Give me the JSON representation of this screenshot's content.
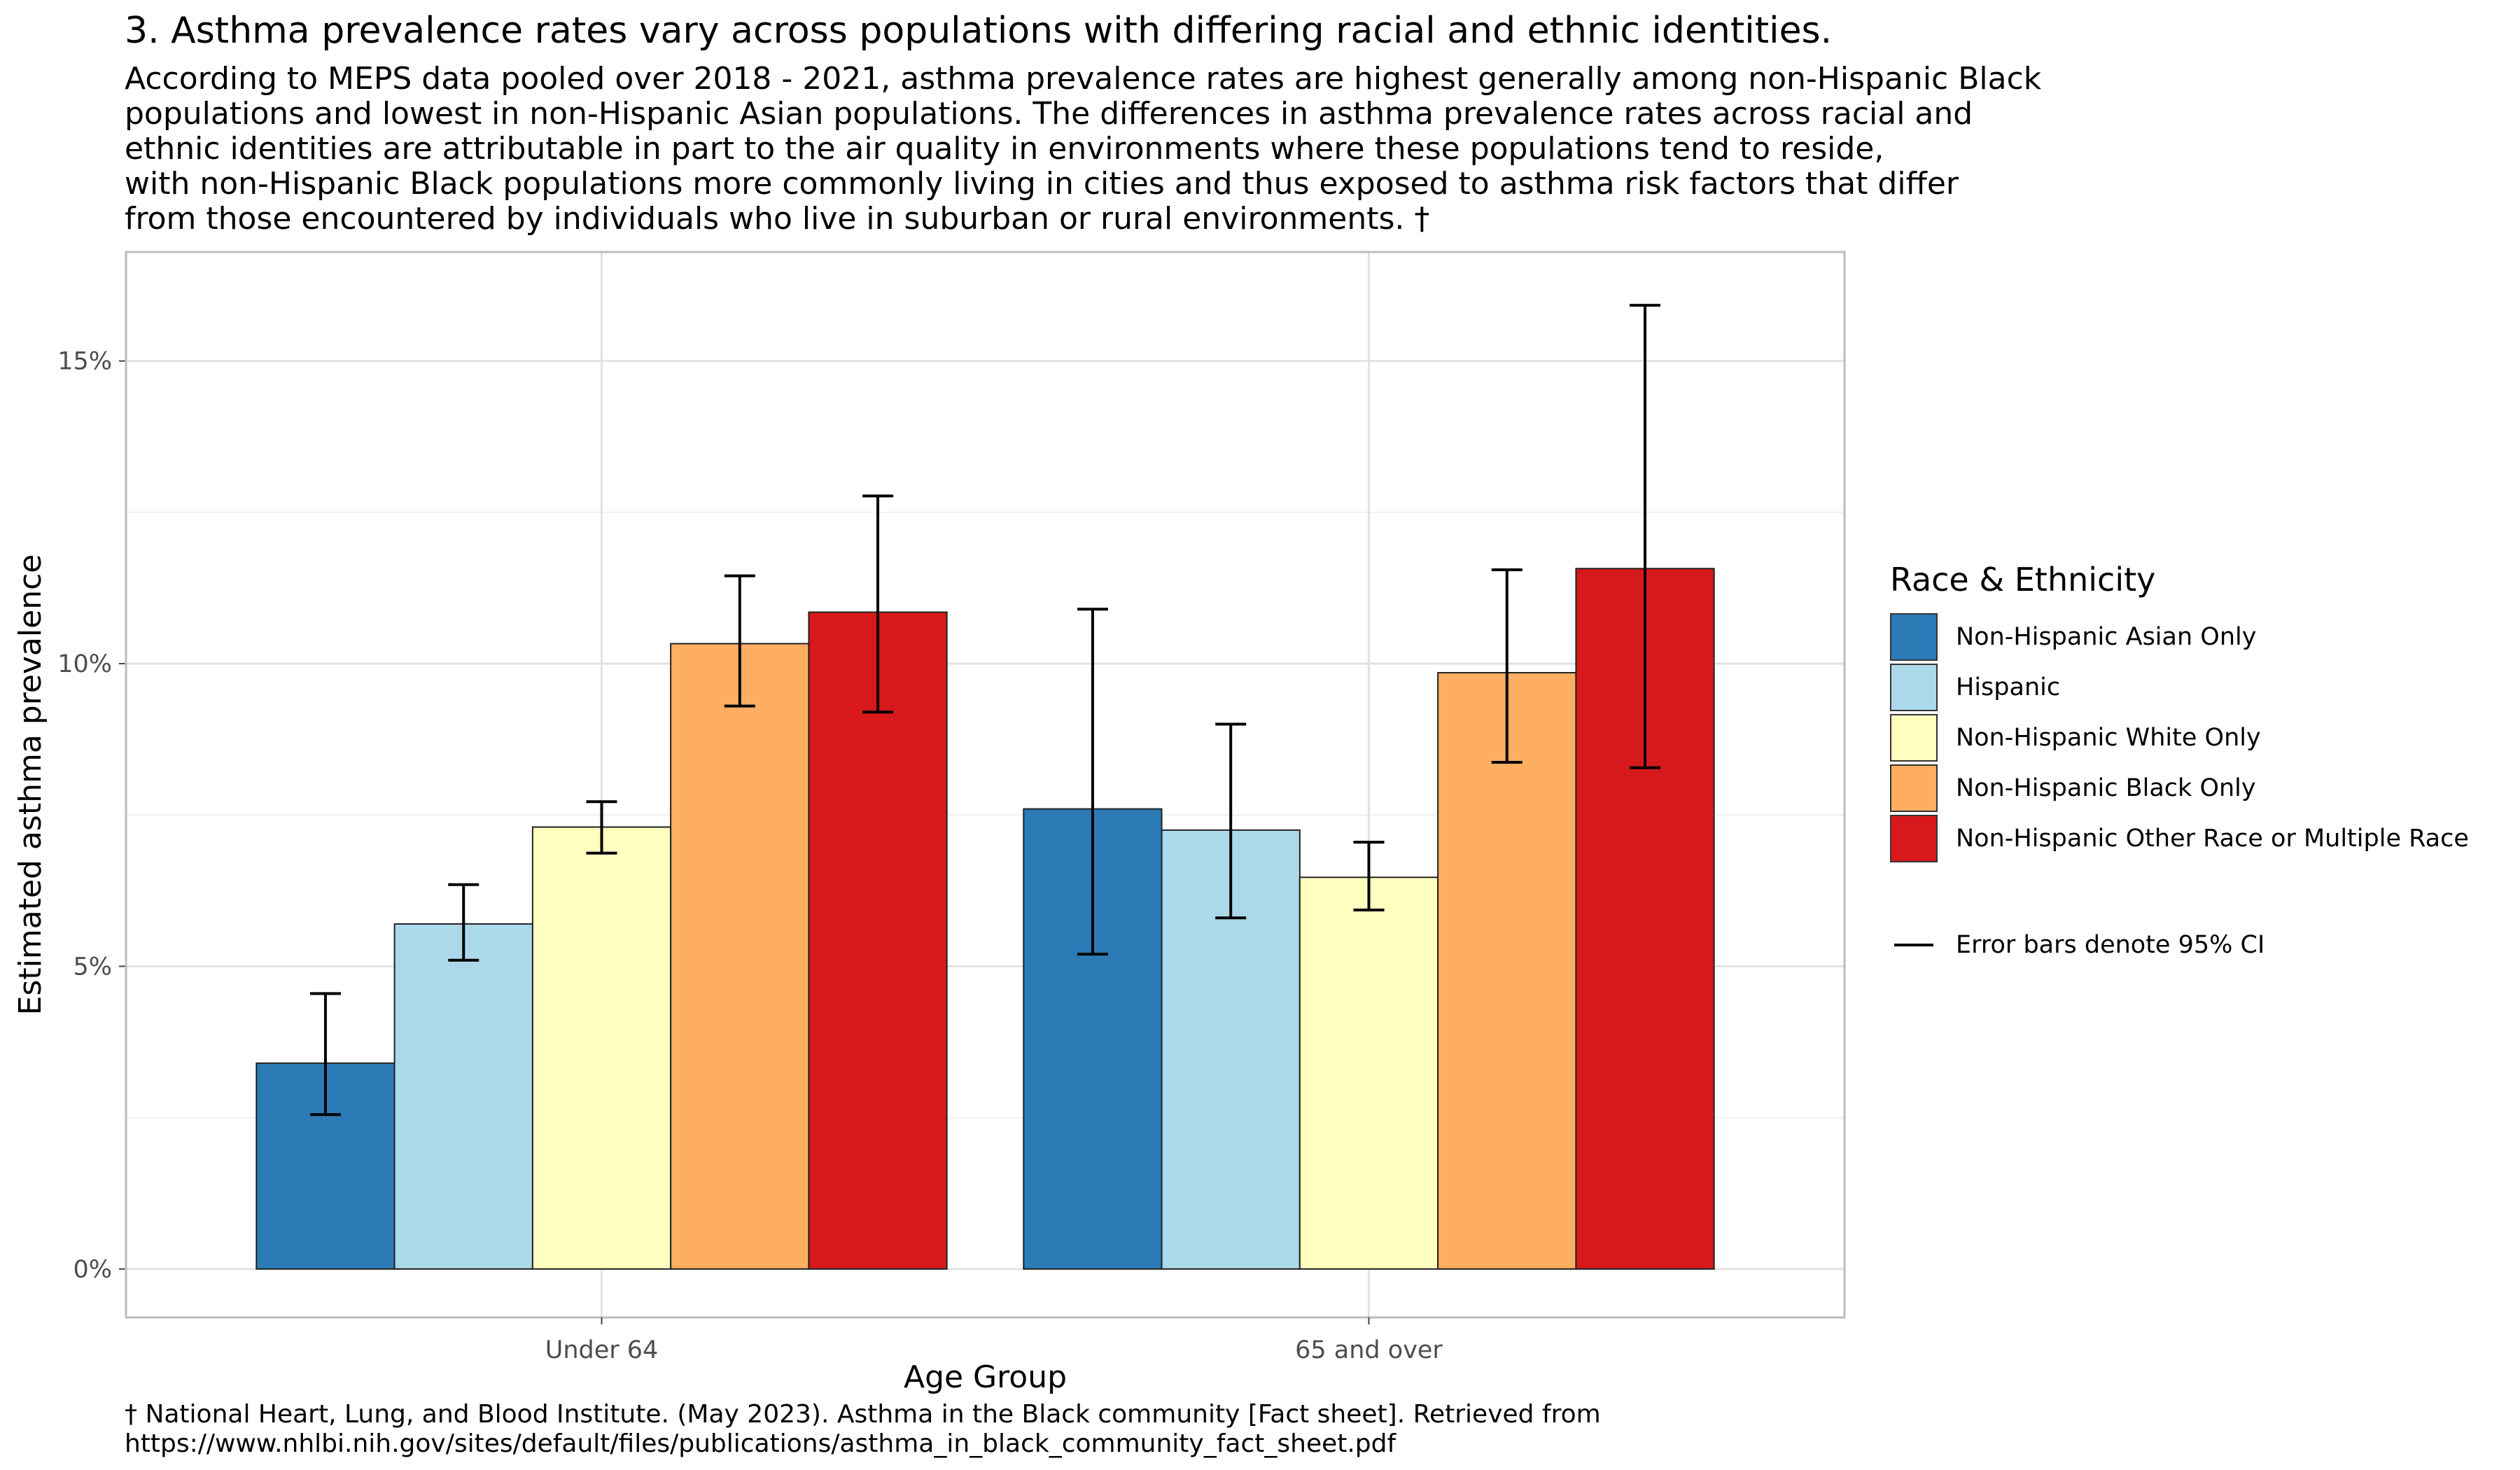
{
  "header": {
    "title": "3. Asthma prevalence rates vary across populations with differing racial and ethnic identities.",
    "subtitle_lines": [
      "According to MEPS data pooled over 2018 - 2021, asthma prevalence rates are highest generally among non-Hispanic Black",
      "populations and lowest in non-Hispanic Asian populations. The differences in asthma prevalence rates across racial and",
      "ethnic identities are attributable in part to the air quality in environments where these populations tend to reside,",
      "with non-Hispanic Black populations more commonly living in cities and thus exposed to asthma risk factors that differ",
      "from those encountered by individuals who live in suburban or rural environments. †"
    ]
  },
  "caption_lines": [
    "† National Heart, Lung, and Blood Institute. (May 2023). Asthma in the Black community [Fact sheet]. Retrieved from",
    "https://www.nhlbi.nih.gov/sites/default/files/publications/asthma_in_black_community_fact_sheet.pdf"
  ],
  "legend": {
    "title": "Race & Ethnicity",
    "error_note": "Error bars denote 95% CI"
  },
  "chart_data": {
    "type": "bar",
    "title": "3. Asthma prevalence rates vary across populations with differing racial and ethnic identities.",
    "xlabel": "Age Group",
    "ylabel": "Estimated asthma prevalence",
    "categories": [
      "Under 64",
      "65 and over"
    ],
    "yticks": [
      0,
      5,
      10,
      15
    ],
    "ytick_labels": [
      "0%",
      "5%",
      "10%",
      "15%"
    ],
    "ylim": [
      -0.8,
      16.8
    ],
    "grid": true,
    "legend_position": "right",
    "series": [
      {
        "name": "Non-Hispanic Asian Only",
        "color": "#2c7bb6",
        "values": [
          3.4,
          7.6
        ],
        "ci_low": [
          2.55,
          5.2
        ],
        "ci_high": [
          4.55,
          10.9
        ]
      },
      {
        "name": "Hispanic",
        "color": "#abd9e9",
        "values": [
          5.7,
          7.25
        ],
        "ci_low": [
          5.1,
          5.8
        ],
        "ci_high": [
          6.35,
          9.0
        ]
      },
      {
        "name": "Non-Hispanic White Only",
        "color": "#ffffbf",
        "values": [
          7.3,
          6.47
        ],
        "ci_low": [
          6.87,
          5.93
        ],
        "ci_high": [
          7.72,
          7.05
        ]
      },
      {
        "name": "Non-Hispanic Black Only",
        "color": "#fdae61",
        "values": [
          10.33,
          9.85
        ],
        "ci_low": [
          9.3,
          8.37
        ],
        "ci_high": [
          11.45,
          11.55
        ]
      },
      {
        "name": "Non-Hispanic Other Race or Multiple Race",
        "color": "#d7191c",
        "values": [
          10.85,
          11.57
        ],
        "ci_low": [
          9.2,
          8.28
        ],
        "ci_high": [
          12.77,
          15.92
        ]
      }
    ]
  }
}
